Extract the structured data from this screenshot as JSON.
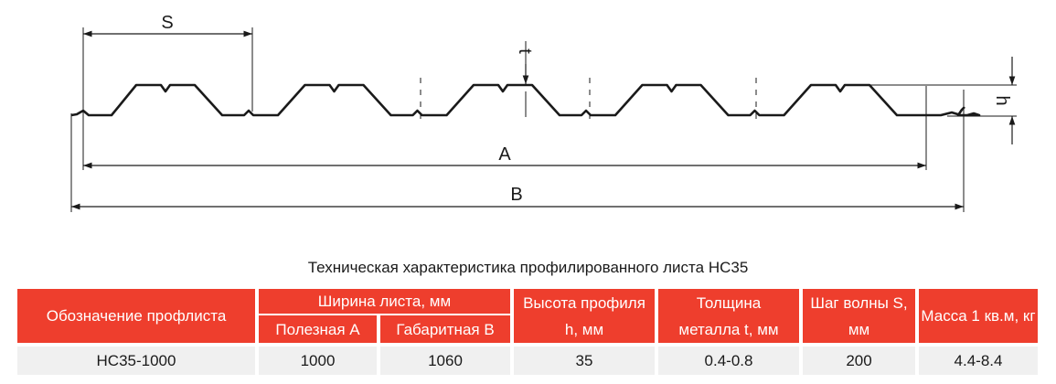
{
  "diagram": {
    "labels": {
      "S": "S",
      "t": "t",
      "h": "h",
      "A": "A",
      "B": "B"
    },
    "line_color": "#1a1a1a"
  },
  "caption": "Техническая характеристика профилированного листа НС35",
  "table": {
    "header_color": "#ee3e2d",
    "row_color": "#f0f0f0",
    "headers": {
      "designation": "Обозначение профлиста",
      "sheet_width": "Ширина листа, мм",
      "useful_a": "Полезная А",
      "overall_b": "Габаритная В",
      "profile_height": "Высота профиля h, мм",
      "thickness": "Толщина металла t, мм",
      "wave_pitch": "Шаг волны S, мм",
      "mass": "Масса 1 кв.м, кг"
    },
    "row": {
      "designation": "НС35-1000",
      "useful_a": "1000",
      "overall_b": "1060",
      "profile_height": "35",
      "thickness": "0.4-0.8",
      "wave_pitch": "200",
      "mass": "4.4-8.4"
    }
  }
}
